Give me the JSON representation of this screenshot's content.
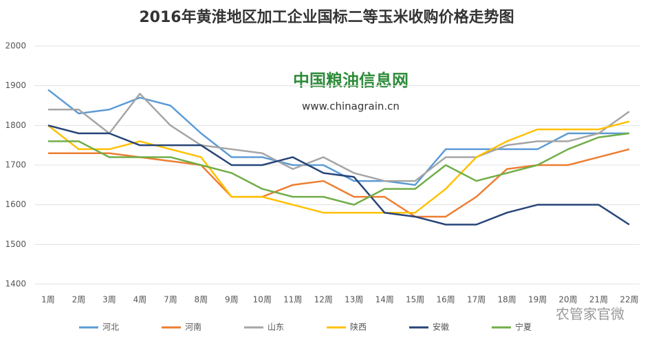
{
  "chart_data": {
    "type": "line",
    "title": "2016年黄淮地区加工企业国标二等玉米收购价格走势图",
    "annotations": [
      "中国粮油信息网",
      "www.chinagrain.cn",
      "农管家官微"
    ],
    "categories": [
      "1周",
      "2周",
      "3周",
      "4周",
      "7周",
      "8周",
      "9周",
      "10周",
      "11周",
      "12周",
      "13周",
      "14周",
      "15周",
      "16周",
      "17周",
      "18周",
      "19周",
      "20周",
      "21周",
      "22周"
    ],
    "series": [
      {
        "name": "河北",
        "color": "#5b9bd5",
        "values": [
          1890,
          1830,
          1840,
          1870,
          1850,
          1780,
          1720,
          1720,
          1700,
          1700,
          1660,
          1660,
          1650,
          1740,
          1740,
          1740,
          1740,
          1780,
          1780,
          1780
        ]
      },
      {
        "name": "河南",
        "color": "#ed7d31",
        "values": [
          1730,
          1730,
          1730,
          1720,
          1710,
          1700,
          1620,
          1620,
          1650,
          1660,
          1620,
          1620,
          1570,
          1570,
          1620,
          1690,
          1700,
          1700,
          1720,
          1740
        ]
      },
      {
        "name": "山东",
        "color": "#a5a5a5",
        "values": [
          1840,
          1840,
          1780,
          1880,
          1800,
          1750,
          1740,
          1730,
          1690,
          1720,
          1680,
          1660,
          1660,
          1720,
          1720,
          1750,
          1760,
          1760,
          1780,
          1835
        ]
      },
      {
        "name": "陕西",
        "color": "#ffc000",
        "values": [
          1800,
          1740,
          1740,
          1760,
          1740,
          1720,
          1620,
          1620,
          1600,
          1580,
          1580,
          1580,
          1580,
          1640,
          1720,
          1760,
          1790,
          1790,
          1790,
          1810
        ]
      },
      {
        "name": "安徽",
        "color": "#264478",
        "values": [
          1800,
          1780,
          1780,
          1750,
          1750,
          1750,
          1700,
          1700,
          1720,
          1680,
          1670,
          1580,
          1570,
          1550,
          1550,
          1580,
          1600,
          1600,
          1600,
          1550
        ]
      },
      {
        "name": "宁夏",
        "color": "#70ad47",
        "values": [
          1760,
          1760,
          1720,
          1720,
          1720,
          1700,
          1680,
          1640,
          1620,
          1620,
          1600,
          1640,
          1640,
          1700,
          1660,
          1680,
          1700,
          1740,
          1770,
          1780
        ]
      }
    ],
    "ylim": [
      1400,
      2000
    ],
    "yticks": [
      1400,
      1500,
      1600,
      1700,
      1800,
      1900,
      2000
    ],
    "grid": true
  }
}
